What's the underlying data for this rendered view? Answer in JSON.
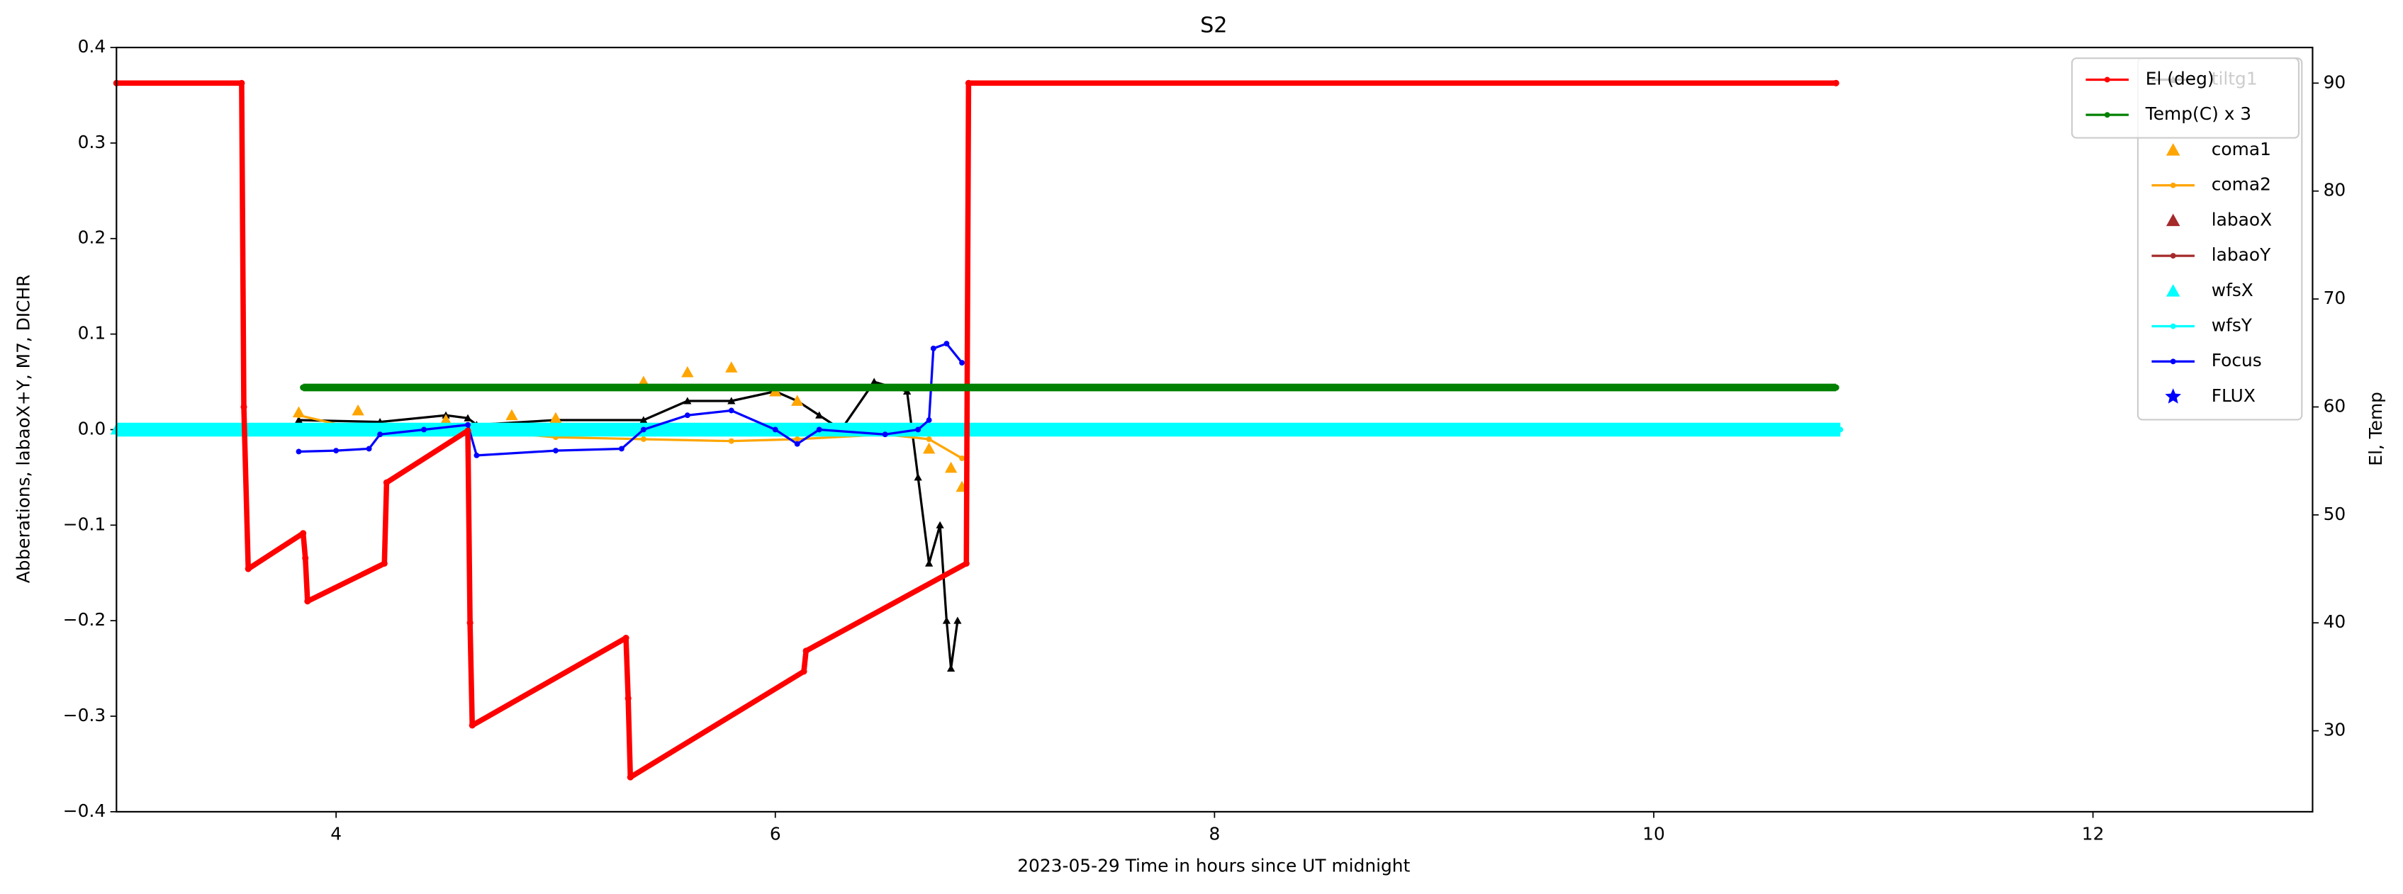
{
  "chart_data": {
    "type": "line",
    "title": "S2",
    "x_label": "2023-05-29  Time in hours since UT midnight",
    "y_label": "Abberations, labaoX+Y, M7, DICHR",
    "y2_label": "El, Temp",
    "xlim": [
      3.0,
      13.0
    ],
    "xticks": [
      4,
      6,
      8,
      10,
      12
    ],
    "ylim": [
      -0.4,
      0.4
    ],
    "yticks": [
      {
        "value": -0.4,
        "label": "−0.4"
      },
      {
        "value": -0.3,
        "label": "−0.3"
      },
      {
        "value": -0.2,
        "label": "−0.2"
      },
      {
        "value": -0.1,
        "label": "−0.1"
      },
      {
        "value": 0,
        "label": "0.0"
      },
      0.1,
      0.2,
      0.3,
      0.4
    ],
    "y2lim": [
      22.5,
      93.3
    ],
    "y2ticks": [
      30,
      40,
      50,
      60,
      70,
      80,
      90
    ],
    "legend": "upper right",
    "y2_legend": "upper right",
    "series": [
      {
        "name": "tiltg1",
        "color": "#000000",
        "marker": "^",
        "linestyle": "-",
        "axis": "y",
        "x": [
          3.83,
          4.2,
          4.5,
          4.6,
          4.64,
          5.0,
          5.4,
          5.6,
          5.8,
          6.0,
          6.1,
          6.2,
          6.3,
          6.45,
          6.6,
          6.65,
          6.7,
          6.75,
          6.78,
          6.8,
          6.83
        ],
        "values": [
          0.01,
          0.008,
          0.015,
          0.012,
          0.005,
          0.01,
          0.01,
          0.03,
          0.03,
          0.04,
          0.03,
          0.015,
          0.0,
          0.05,
          0.04,
          -0.05,
          -0.14,
          -0.1,
          -0.2,
          -0.25,
          -0.2
        ]
      },
      {
        "name": "coma1",
        "color": "#ffa500",
        "marker": "^",
        "linestyle": "none",
        "axis": "y",
        "x": [
          3.83,
          4.1,
          4.5,
          4.8,
          5.0,
          5.4,
          5.6,
          5.8,
          6.0,
          6.1,
          6.7,
          6.8,
          6.85
        ],
        "values": [
          0.018,
          0.02,
          0.01,
          0.015,
          0.012,
          0.05,
          0.06,
          0.065,
          0.04,
          0.03,
          -0.02,
          -0.04,
          -0.06
        ]
      },
      {
        "name": "coma2",
        "color": "#ffa500",
        "marker": "o",
        "linestyle": "-",
        "axis": "y",
        "x": [
          3.83,
          4.2,
          4.6,
          5.0,
          5.4,
          5.8,
          6.1,
          6.5,
          6.7,
          6.85
        ],
        "values": [
          0.015,
          -0.005,
          0.0,
          -0.008,
          -0.01,
          -0.012,
          -0.01,
          -0.005,
          -0.01,
          -0.03
        ]
      },
      {
        "name": "labaoX",
        "color": "#a52a2a",
        "marker": "^",
        "linestyle": "none",
        "axis": "y",
        "x": [
          3.83,
          5.0,
          6.0,
          6.85
        ],
        "values": [
          0.0,
          0.0,
          0.0,
          0.0
        ]
      },
      {
        "name": "labaoY",
        "color": "#a52a2a",
        "marker": "o",
        "linestyle": "-",
        "axis": "y",
        "x": [
          3.83,
          5.0,
          6.0,
          6.85
        ],
        "values": [
          0.0,
          0.0,
          0.0,
          0.0
        ]
      },
      {
        "name": "wfsX",
        "color": "#00ffff",
        "marker": "^",
        "linestyle": "none",
        "axis": "y",
        "x": [
          3.0,
          3.25,
          3.5,
          3.75,
          4.0,
          4.25,
          4.5,
          4.75,
          5.0,
          5.25,
          5.5,
          5.75,
          6.0,
          6.25,
          6.5,
          6.75,
          7.0,
          7.25,
          7.5,
          7.75,
          8.0,
          8.25,
          8.5,
          8.75,
          9.0,
          9.25,
          9.5,
          9.75,
          10.0,
          10.25,
          10.5,
          10.75
        ],
        "values": [
          0,
          0,
          0,
          0,
          0,
          0,
          0,
          0,
          0,
          0,
          0,
          0,
          0,
          0,
          0,
          0,
          0,
          0,
          0,
          0,
          0,
          0,
          0,
          0,
          0,
          0,
          0,
          0,
          0,
          0,
          0,
          0
        ]
      },
      {
        "name": "wfsY",
        "color": "#00ffff",
        "marker": "o",
        "linestyle": "-",
        "axis": "y",
        "x": [
          3.0,
          10.85
        ],
        "values": [
          0,
          0
        ]
      },
      {
        "name": "Focus",
        "color": "#0000ff",
        "marker": "o",
        "linestyle": "-",
        "axis": "y",
        "x": [
          3.83,
          4.0,
          4.15,
          4.2,
          4.4,
          4.6,
          4.64,
          5.0,
          5.3,
          5.4,
          5.6,
          5.8,
          6.0,
          6.1,
          6.2,
          6.5,
          6.65,
          6.7,
          6.72,
          6.78,
          6.85
        ],
        "values": [
          -0.023,
          -0.022,
          -0.02,
          -0.005,
          0.0,
          0.005,
          -0.027,
          -0.022,
          -0.02,
          0.0,
          0.015,
          0.02,
          0.0,
          -0.015,
          0.0,
          -0.005,
          0.0,
          0.01,
          0.085,
          0.09,
          0.07
        ]
      },
      {
        "name": "FLUX",
        "color": "#0000ff",
        "marker": "*",
        "linestyle": "none",
        "axis": "y",
        "x": [],
        "values": []
      },
      {
        "name": "El (deg)",
        "color": "#ff0000",
        "marker": "o",
        "linestyle": "-",
        "axis": "y2",
        "x": [
          3.0,
          3.57,
          3.58,
          3.6,
          3.85,
          3.86,
          3.87,
          4.22,
          4.23,
          4.6,
          4.61,
          4.62,
          5.32,
          5.33,
          5.34,
          6.13,
          6.14,
          6.87,
          6.88,
          10.83
        ],
        "values": [
          90,
          90,
          60,
          45,
          48.3,
          46,
          42,
          45.5,
          53,
          57.8,
          40,
          30.5,
          38.6,
          33,
          25.7,
          35.5,
          37.4,
          45.5,
          90,
          90
        ]
      },
      {
        "name": "Temp(C) x 3",
        "color": "#008000",
        "marker": "o",
        "linestyle": "-",
        "axis": "y2",
        "x": [
          3.85,
          10.83
        ],
        "values": [
          61.8,
          61.8
        ]
      }
    ]
  }
}
